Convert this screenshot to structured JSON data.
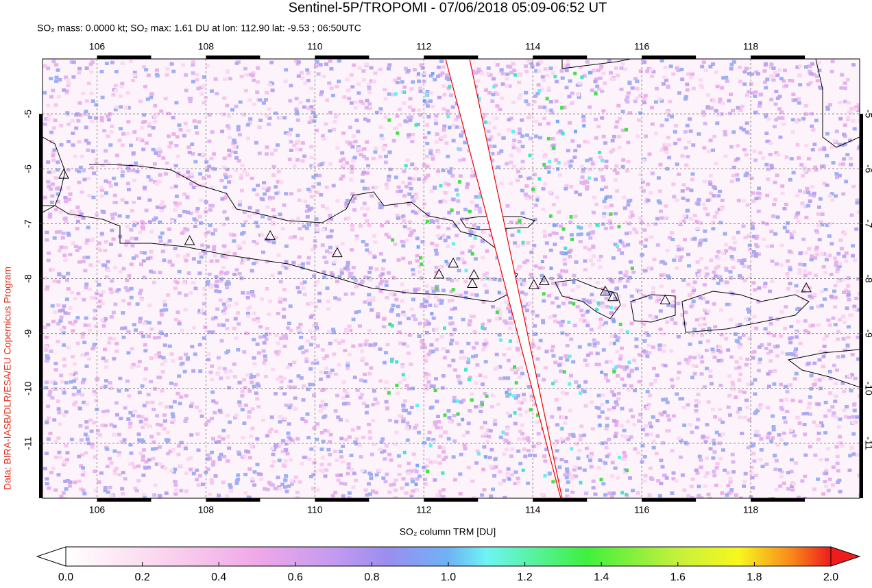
{
  "map": {
    "title": "Sentinel-5P/TROPOMI - 07/06/2018 05:09-06:52 UT",
    "subtitle": "SO₂ mass: 0.0000 kt; SO₂ max: 1.61 DU at lon: 112.90 lat: -9.53 ; 06:50UTC",
    "credit": "Data: BIRA-IASB/DLR/ESA/EU Copernicus Program",
    "xlim": [
      105,
      120
    ],
    "ylim": [
      -12,
      -4
    ],
    "xticks": [
      106,
      108,
      110,
      112,
      114,
      116,
      118
    ],
    "yticks": [
      -5,
      -6,
      -7,
      -8,
      -9,
      -10,
      -11
    ],
    "grid": true,
    "volcanoes": [
      {
        "lon": 105.39,
        "lat": -6.11
      },
      {
        "lon": 107.7,
        "lat": -7.32
      },
      {
        "lon": 109.18,
        "lat": -7.23
      },
      {
        "lon": 110.41,
        "lat": -7.54
      },
      {
        "lon": 112.28,
        "lat": -7.93
      },
      {
        "lon": 112.54,
        "lat": -7.73
      },
      {
        "lon": 112.92,
        "lat": -7.94
      },
      {
        "lon": 112.89,
        "lat": -8.1
      },
      {
        "lon": 114.02,
        "lat": -8.12
      },
      {
        "lon": 114.21,
        "lat": -8.05
      },
      {
        "lon": 115.33,
        "lat": -8.24
      },
      {
        "lon": 115.47,
        "lat": -8.34
      },
      {
        "lon": 116.43,
        "lat": -8.4
      },
      {
        "lon": 119.02,
        "lat": -8.18
      }
    ],
    "colorbar": {
      "label": "SO₂ column TRM [DU]",
      "lim": [
        0,
        2
      ],
      "ticks": [
        {
          "value": 0,
          "label": "0.0"
        },
        0.2,
        0.4,
        0.6,
        0.8,
        {
          "value": 1,
          "label": "1.0"
        },
        1.2,
        1.4,
        1.6,
        1.8,
        {
          "value": 2,
          "label": "2.0"
        }
      ]
    }
  }
}
